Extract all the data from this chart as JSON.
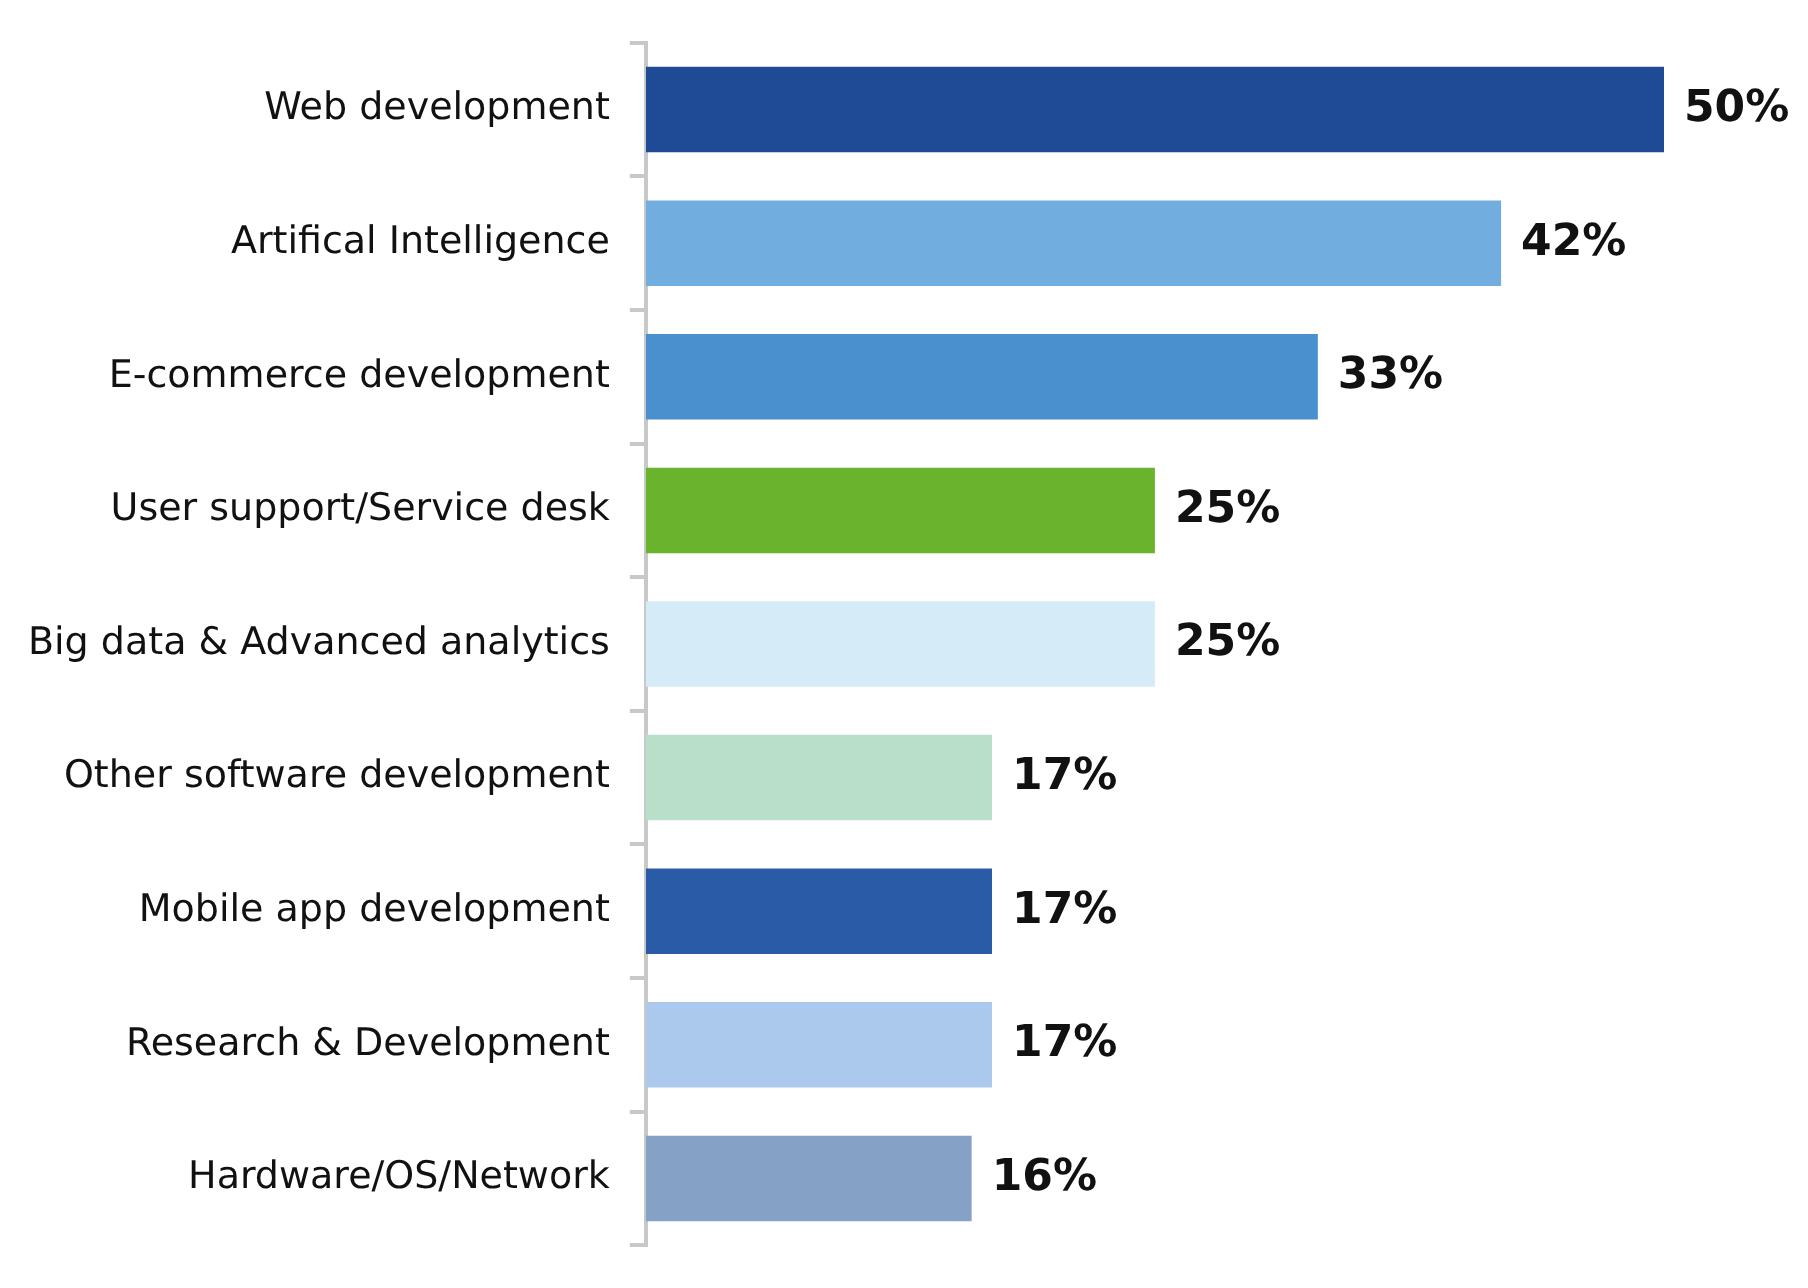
{
  "chart_data": {
    "type": "bar",
    "orientation": "horizontal",
    "categories": [
      "Web development",
      "Artifical Intelligence",
      "E-commerce development",
      "User support/Service desk",
      "Big data & Advanced analytics",
      "Other software development",
      "Mobile app development",
      "Research & Development",
      "Hardware/OS/Network"
    ],
    "values": [
      50,
      42,
      33,
      25,
      25,
      17,
      17,
      17,
      16
    ],
    "colors": [
      "#1f4a96",
      "#72ade0",
      "#4a8fce",
      "#6ab42d",
      "#d6ebf8",
      "#b9dfca",
      "#2a5ba6",
      "#abc9ec",
      "#86a1c6"
    ],
    "value_labels": [
      "50%",
      "42%",
      "33%",
      "25%",
      "25%",
      "17%",
      "17%",
      "17%",
      "16%"
    ],
    "legend": false
  }
}
